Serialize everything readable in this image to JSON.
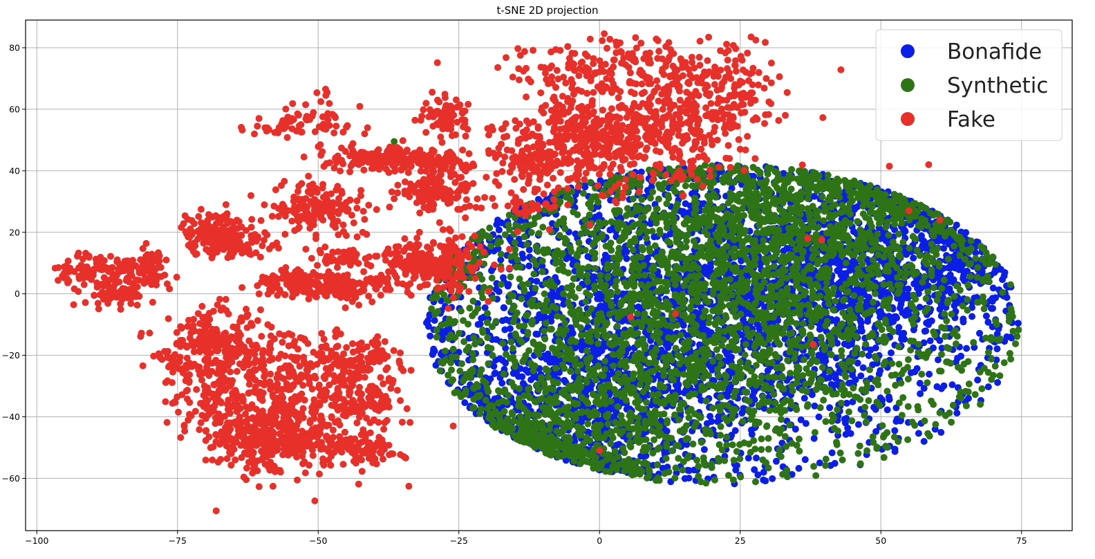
{
  "chart_data": {
    "type": "scatter",
    "title": "t-SNE 2D projection",
    "xlabel": "",
    "ylabel": "",
    "xlim": [
      -102,
      84
    ],
    "ylim": [
      -77,
      89
    ],
    "xticks": [
      -100,
      -75,
      -50,
      -25,
      0,
      25,
      50,
      75
    ],
    "yticks": [
      -60,
      -40,
      -20,
      0,
      20,
      40,
      60,
      80
    ],
    "grid": true,
    "legend_position": "top-right",
    "series": [
      {
        "name": "Bonafide",
        "color": "#0a1ee6",
        "clusters": [
          {
            "center": [
              18,
              -5
            ],
            "spread": [
              25,
              25
            ],
            "count": 2600
          },
          {
            "center": [
              52,
              12
            ],
            "spread": [
              12,
              14
            ],
            "count": 700
          },
          {
            "center": [
              -5,
              -40
            ],
            "spread": [
              12,
              14
            ],
            "count": 500
          }
        ],
        "outliers": [
          [
            -43.5,
            42.5
          ]
        ]
      },
      {
        "name": "Synthetic",
        "color": "#2e7316",
        "clusters": [
          {
            "center": [
              20,
              -5
            ],
            "spread": [
              25,
              25
            ],
            "count": 2400
          },
          {
            "center": [
              35,
              25
            ],
            "spread": [
              15,
              10
            ],
            "count": 600
          },
          {
            "center": [
              -5,
              -45
            ],
            "spread": [
              13,
              12
            ],
            "count": 500
          }
        ],
        "outliers": [
          [
            -36.5,
            49.5
          ],
          [
            -34,
            32.5
          ]
        ]
      },
      {
        "name": "Fake",
        "color": "#e8302a",
        "clusters": [
          {
            "center": [
              -88,
              8
            ],
            "spread": [
              4.5,
              2.5
            ],
            "count": 110
          },
          {
            "center": [
              -86,
              0
            ],
            "spread": [
              3.0,
              2.0
            ],
            "count": 80
          },
          {
            "center": [
              -80,
              8
            ],
            "spread": [
              1.8,
              3.5
            ],
            "count": 45
          },
          {
            "center": [
              -69,
              22
            ],
            "spread": [
              2.5,
              3.5
            ],
            "count": 90
          },
          {
            "center": [
              -66,
              17
            ],
            "spread": [
              3.5,
              2.5
            ],
            "count": 120
          },
          {
            "center": [
              -56,
              54
            ],
            "spread": [
              3.5,
              1.5
            ],
            "count": 35
          },
          {
            "center": [
              -49,
              57
            ],
            "spread": [
              3.5,
              4.0
            ],
            "count": 40
          },
          {
            "center": [
              -50,
              28
            ],
            "spread": [
              4.5,
              4.0
            ],
            "count": 170
          },
          {
            "center": [
              -46,
              12
            ],
            "spread": [
              2.5,
              1.5
            ],
            "count": 50
          },
          {
            "center": [
              -53,
              3
            ],
            "spread": [
              3.5,
              2.0
            ],
            "count": 130
          },
          {
            "center": [
              -45,
              2
            ],
            "spread": [
              3.5,
              2.0
            ],
            "count": 110
          },
          {
            "center": [
              -39,
              44
            ],
            "spread": [
              4.5,
              2.0
            ],
            "count": 160
          },
          {
            "center": [
              -29,
              43
            ],
            "spread": [
              3.5,
              2.0
            ],
            "count": 90
          },
          {
            "center": [
              -27,
              57
            ],
            "spread": [
              2.5,
              3.0
            ],
            "count": 80
          },
          {
            "center": [
              -29,
              33
            ],
            "spread": [
              3.5,
              3.0
            ],
            "count": 130
          },
          {
            "center": [
              -33,
              10
            ],
            "spread": [
              3.5,
              3.5
            ],
            "count": 140
          },
          {
            "center": [
              -27,
              9
            ],
            "spread": [
              3.5,
              5.0
            ],
            "count": 120
          },
          {
            "center": [
              -12,
              30
            ],
            "spread": [
              3.0,
              3.5
            ],
            "count": 35
          },
          {
            "center": [
              -12,
              45
            ],
            "spread": [
              3.5,
              5.0
            ],
            "count": 140
          },
          {
            "center": [
              -2,
              52
            ],
            "spread": [
              5.0,
              9.0
            ],
            "count": 300
          },
          {
            "center": [
              2,
              74
            ],
            "spread": [
              10.0,
              4.0
            ],
            "count": 150
          },
          {
            "center": [
              10,
              52
            ],
            "spread": [
              6.0,
              9.0
            ],
            "count": 250
          },
          {
            "center": [
              20,
              61
            ],
            "spread": [
              7.0,
              8.0
            ],
            "count": 150
          },
          {
            "center": [
              22,
              72
            ],
            "spread": [
              4.0,
              6.0
            ],
            "count": 60
          },
          {
            "center": [
              -68,
              -15
            ],
            "spread": [
              5.0,
              5.0
            ],
            "count": 180
          },
          {
            "center": [
              -67,
              -30
            ],
            "spread": [
              5.0,
              8.0
            ],
            "count": 230
          },
          {
            "center": [
              -57,
              -46
            ],
            "spread": [
              6.0,
              6.0
            ],
            "count": 420
          },
          {
            "center": [
              -51,
              -27
            ],
            "spread": [
              5.0,
              7.0
            ],
            "count": 200
          },
          {
            "center": [
              -42,
              -21
            ],
            "spread": [
              3.5,
              4.0
            ],
            "count": 90
          },
          {
            "center": [
              -41,
              -35
            ],
            "spread": [
              3.0,
              3.0
            ],
            "count": 80
          },
          {
            "center": [
              -42,
              -50
            ],
            "spread": [
              3.5,
              4.0
            ],
            "count": 90
          },
          {
            "center": [
              -76,
              -22
            ],
            "spread": [
              2.0,
              1.5
            ],
            "count": 25
          }
        ],
        "outliers": [
          [
            -26,
            -43
          ],
          [
            0,
            -51
          ],
          [
            5.5,
            -7.5
          ],
          [
            13.5,
            -6.5
          ],
          [
            37,
            18
          ],
          [
            39.5,
            17.5
          ],
          [
            38,
            -16.5
          ],
          [
            51.5,
            41.5
          ],
          [
            58.5,
            42
          ],
          [
            55,
            27
          ],
          [
            60.5,
            24
          ],
          [
            25,
            47
          ],
          [
            -16,
            14.5
          ],
          [
            -15,
            27
          ]
        ]
      }
    ]
  }
}
